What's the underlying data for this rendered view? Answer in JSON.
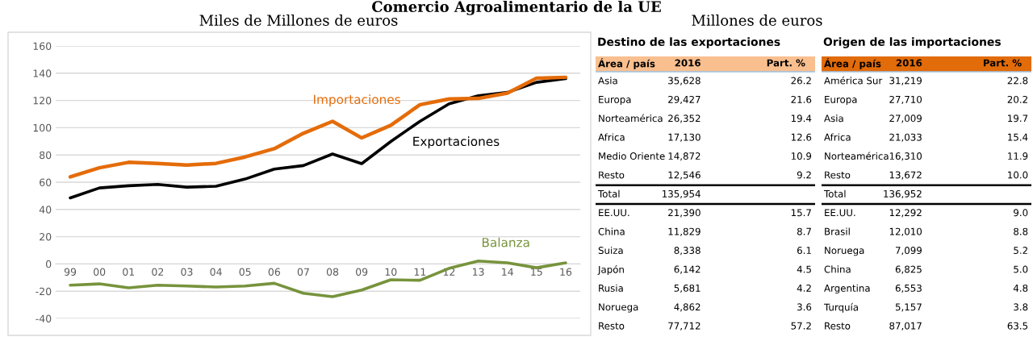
{
  "chart_data": [
    {
      "type": "line",
      "title": "Comercio Agroalimentario de la UE",
      "subtitle": "Miles de Millones de euros",
      "categories": [
        "99",
        "00",
        "01",
        "02",
        "03",
        "04",
        "05",
        "06",
        "07",
        "08",
        "09",
        "10",
        "11",
        "12",
        "13",
        "14",
        "15",
        "16"
      ],
      "series": [
        {
          "name": "Importaciones",
          "color": "#e46c0a",
          "values": [
            63.9,
            70.6,
            74.6,
            73.8,
            72.6,
            73.8,
            78.5,
            84.6,
            95.9,
            104.7,
            92.5,
            101.8,
            116.9,
            121.1,
            121.5,
            125.4,
            136.3,
            137.0
          ]
        },
        {
          "name": "Exportaciones",
          "color": "#000000",
          "values": [
            48.5,
            55.8,
            57.4,
            58.4,
            56.4,
            57.0,
            62.3,
            69.6,
            72.2,
            80.7,
            73.6,
            89.9,
            104.7,
            117.5,
            123.4,
            125.9,
            133.3,
            136.0
          ]
        },
        {
          "name": "Balanza",
          "color": "#77933c",
          "values": [
            -15.6,
            -14.6,
            -17.5,
            -15.6,
            -16.2,
            -16.9,
            -16.2,
            -14.2,
            -21.5,
            -24.0,
            -19.1,
            -11.6,
            -12.0,
            -3.2,
            2.2,
            0.8,
            -2.8,
            0.8
          ]
        }
      ],
      "ylim": [
        -40,
        160
      ],
      "yticks": [
        -40,
        -20,
        0,
        20,
        40,
        60,
        80,
        100,
        120,
        140,
        160
      ],
      "grid": "y",
      "legend": false
    },
    {
      "type": "other",
      "subtitle": "Millones de euros",
      "title": "Destino de las exportaciones",
      "ylabel": "Área / país",
      "categories": [
        "Asia",
        "Europa",
        "Norteamérica",
        "Africa",
        "Medio Oriente",
        "Resto",
        "Total",
        "EE.UU.",
        "China",
        "Suiza",
        "Japón",
        "Rusia",
        "Noruega",
        "Resto"
      ],
      "series": [
        {
          "name": "2016",
          "values": [
            35628,
            29427,
            26352,
            17130,
            14872,
            12546,
            135954,
            21390,
            11829,
            8338,
            6142,
            5681,
            4862,
            77712
          ],
          "value_labels": [
            "35,628",
            "29,427",
            "26,352",
            "17,130",
            "14,872",
            "12,546",
            "135,954",
            "21,390",
            "11,829",
            "8,338",
            "6,142",
            "5,681",
            "4,862",
            "77,712"
          ]
        },
        {
          "name": "Part. %",
          "values": [
            26.2,
            21.6,
            19.4,
            12.6,
            10.9,
            9.2,
            null,
            15.7,
            8.7,
            6.1,
            4.5,
            4.2,
            3.6,
            57.2
          ],
          "value_labels": [
            "26.2",
            "21.6",
            "19.4",
            "12.6",
            "10.9",
            "9.2",
            null,
            "15.7",
            "8.7",
            "6.1",
            "4.5",
            "4.2",
            "3.6",
            "57.2"
          ]
        }
      ]
    },
    {
      "type": "other",
      "title": "Origen de las importaciones",
      "ylabel": "Área / país",
      "categories": [
        "América Sur",
        "Europa",
        "Asia",
        "Africa",
        "Norteamérica",
        "Resto",
        "Total",
        "EE.UU.",
        "Brasil",
        "Noruega",
        "China",
        "Argentina",
        "Turquía",
        "Resto"
      ],
      "series": [
        {
          "name": "2016",
          "values": [
            31219,
            27710,
            27009,
            21033,
            16310,
            13672,
            136952,
            12292,
            12010,
            7099,
            6825,
            6553,
            5157,
            87017
          ],
          "value_labels": [
            "31,219",
            "27,710",
            "27,009",
            "21,033",
            "16,310",
            "13,672",
            "136,952",
            "12,292",
            "12,010",
            "7,099",
            "6,825",
            "6,553",
            "5,157",
            "87,017"
          ]
        },
        {
          "name": "Part. %",
          "values": [
            22.8,
            20.2,
            19.7,
            15.4,
            11.9,
            10.0,
            null,
            9.0,
            8.8,
            5.2,
            5.0,
            4.8,
            3.8,
            63.5
          ],
          "value_labels": [
            "22.8",
            "20.2",
            "19.7",
            "15.4",
            "11.9",
            "10.0",
            null,
            "9.0",
            "8.8",
            "5.2",
            "5.0",
            "4.8",
            "3.8",
            "63.5"
          ]
        }
      ]
    }
  ]
}
